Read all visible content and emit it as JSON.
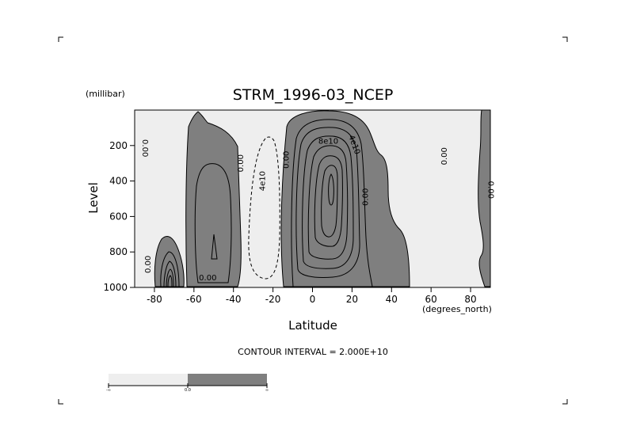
{
  "chart_data": {
    "type": "contour",
    "title": "STRM_1996-03_NCEP",
    "ylabel": "Level",
    "yunits": "(millibar)",
    "xlabel": "Latitude",
    "xunits": "(degrees_north)",
    "xlim": [
      -90,
      90
    ],
    "ylim": [
      1000,
      0
    ],
    "x_ticks": [
      -80,
      -60,
      -40,
      -20,
      0,
      20,
      40,
      60,
      80
    ],
    "x_tick_labels": [
      "-80",
      "-60",
      "-40",
      "-20",
      "0",
      "20",
      "40",
      "60",
      "80"
    ],
    "y_ticks": [
      200,
      400,
      600,
      800,
      1000
    ],
    "y_tick_labels": [
      "200",
      "400",
      "600",
      "800",
      "1000"
    ],
    "contour_interval_text": "CONTOUR INTERVAL = 2.000E+10",
    "shading": {
      "below_zero": "#eeeeee",
      "above_zero": "#7f7f7f"
    },
    "colorbar_labels": [
      "-∞",
      "0.0",
      "∞"
    ],
    "contour_labels": [
      {
        "text": "0.00",
        "lat": -86,
        "p": 215,
        "rotate": 90
      },
      {
        "text": "0.00",
        "lat": -82,
        "p": 870,
        "rotate": -90
      },
      {
        "text": "0.00",
        "lat": -53,
        "p": 960,
        "rotate": 0
      },
      {
        "text": "0.00",
        "lat": -35,
        "p": 300,
        "rotate": -90
      },
      {
        "text": "4e10",
        "lat": -24,
        "p": 400,
        "rotate": -90
      },
      {
        "text": "0.00",
        "lat": -12,
        "p": 280,
        "rotate": -90
      },
      {
        "text": "8e10",
        "lat": 8,
        "p": 190,
        "rotate": 0
      },
      {
        "text": "4e10",
        "lat": 20,
        "p": 200,
        "rotate": 70
      },
      {
        "text": "0.00",
        "lat": 28,
        "p": 490,
        "rotate": -90
      },
      {
        "text": "0.00",
        "lat": 68,
        "p": 260,
        "rotate": -90
      },
      {
        "text": "0.00",
        "lat": 89,
        "p": 450,
        "rotate": 90
      }
    ]
  }
}
